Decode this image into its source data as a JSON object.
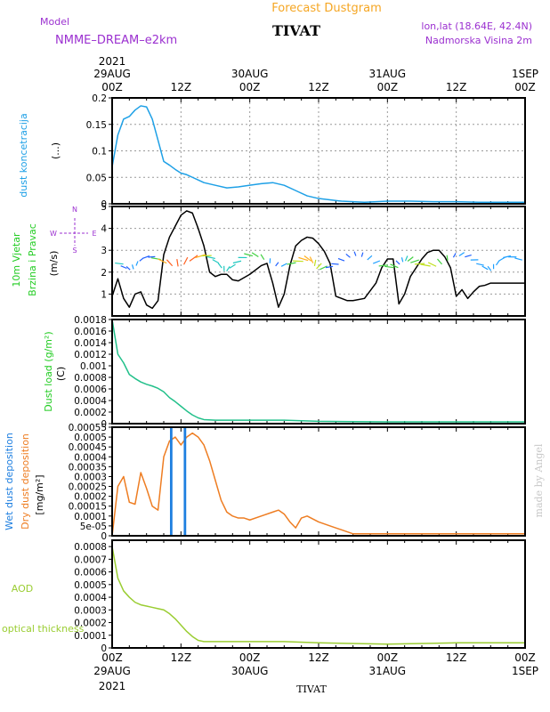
{
  "header": {
    "forecast_title": "Forecast Dustgram",
    "station": "TIVAT",
    "model_label": "Model",
    "model_name": "NMME–DREAM–e2km",
    "lonlat": "lon,lat (18.64E, 42.4N)",
    "elevation": "Nadmorska Visina 2m",
    "footer_station": "TIVAT",
    "watermark": "made by Angel",
    "colors": {
      "title": "#f5a623",
      "purple": "#9b30d0"
    }
  },
  "time_axis": {
    "top_year": "2021",
    "bottom_year": "2021",
    "ticks": [
      {
        "h": 0,
        "top": [
          "29AUG",
          "00Z"
        ],
        "bottom": [
          "00Z",
          "29AUG"
        ]
      },
      {
        "h": 12,
        "top": [
          "12Z"
        ],
        "bottom": [
          "12Z"
        ]
      },
      {
        "h": 24,
        "top": [
          "30AUG",
          "00Z"
        ],
        "bottom": [
          "00Z",
          "30AUG"
        ]
      },
      {
        "h": 36,
        "top": [
          "12Z"
        ],
        "bottom": [
          "12Z"
        ]
      },
      {
        "h": 48,
        "top": [
          "31AUG",
          "00Z"
        ],
        "bottom": [
          "00Z",
          "31AUG"
        ]
      },
      {
        "h": 60,
        "top": [
          "12Z"
        ],
        "bottom": [
          "12Z"
        ]
      },
      {
        "h": 72,
        "top": [
          "1SEP",
          "00Z"
        ],
        "bottom": [
          "00Z",
          "1SEP"
        ]
      }
    ]
  },
  "chart_data": [
    {
      "type": "line",
      "id": "dust_concentration",
      "ylabel": "dust koncetracija",
      "unit": "(...)",
      "label_color": "#1ea0e6",
      "ylim": [
        0,
        0.2
      ],
      "yticks": [
        "0",
        "0.05",
        "0.1",
        "0.15",
        "0.2"
      ],
      "grid": true,
      "series": [
        {
          "color": "#1ea0e6",
          "x": [
            0,
            1,
            2,
            3,
            4,
            5,
            6,
            7,
            8,
            9,
            10,
            11,
            12,
            13,
            14,
            15,
            16,
            18,
            20,
            22,
            24,
            26,
            28,
            30,
            32,
            34,
            36,
            40,
            44,
            48,
            52,
            56,
            60,
            64,
            68,
            72
          ],
          "y": [
            0.07,
            0.13,
            0.16,
            0.165,
            0.177,
            0.185,
            0.183,
            0.16,
            0.12,
            0.08,
            0.073,
            0.065,
            0.058,
            0.055,
            0.05,
            0.045,
            0.04,
            0.035,
            0.03,
            0.032,
            0.035,
            0.038,
            0.04,
            0.035,
            0.025,
            0.015,
            0.01,
            0.005,
            0.003,
            0.005,
            0.005,
            0.004,
            0.004,
            0.003,
            0.003,
            0.003
          ]
        }
      ]
    },
    {
      "type": "line",
      "id": "wind",
      "ylabel": "10m Vjetar",
      "ylabel2": "Brzina i Pravac",
      "unit": "(m/s)",
      "label_color": "#22cc22",
      "compass": {
        "n": "N",
        "s": "S",
        "e": "E",
        "w": "W"
      },
      "ylim": [
        0,
        5
      ],
      "yticks": [
        "1",
        "2",
        "3",
        "4",
        "5"
      ],
      "grid": true,
      "series": [
        {
          "color": "#000000",
          "x": [
            0,
            1,
            2,
            3,
            4,
            5,
            6,
            7,
            8,
            9,
            10,
            11,
            12,
            13,
            14,
            15,
            16,
            17,
            18,
            19,
            20,
            21,
            22,
            24,
            26,
            27,
            28,
            29,
            30,
            31,
            32,
            33,
            34,
            35,
            36,
            37,
            38,
            39,
            40,
            41,
            42,
            44,
            46,
            47,
            48,
            49,
            50,
            51,
            52,
            53,
            54,
            55,
            56,
            57,
            58,
            59,
            60,
            61,
            62,
            63,
            64,
            65,
            66,
            67,
            68,
            69,
            70,
            71,
            72
          ],
          "y": [
            0.9,
            1.7,
            0.8,
            0.4,
            1.0,
            1.1,
            0.5,
            0.35,
            0.7,
            2.8,
            3.6,
            4.1,
            4.6,
            4.8,
            4.7,
            4.0,
            3.2,
            2.0,
            1.8,
            1.9,
            1.9,
            1.65,
            1.6,
            1.9,
            2.3,
            2.4,
            1.5,
            0.4,
            1.0,
            2.3,
            3.2,
            3.45,
            3.6,
            3.55,
            3.3,
            2.95,
            2.4,
            0.9,
            0.8,
            0.7,
            0.7,
            0.8,
            1.5,
            2.2,
            2.6,
            2.6,
            0.55,
            1.0,
            1.8,
            2.2,
            2.6,
            2.9,
            3.0,
            3.0,
            2.7,
            2.2,
            0.9,
            1.2,
            0.8,
            1.1,
            1.35,
            1.4,
            1.5,
            1.5,
            1.5,
            1.5,
            1.5,
            1.5,
            1.5
          ]
        }
      ]
    },
    {
      "type": "line",
      "id": "dust_load",
      "ylabel": "Dust load (g/m²)",
      "unit": "(C)",
      "label_color": "#22cc22",
      "ylim": [
        0,
        0.0018
      ],
      "yticks": [
        "0",
        "0.0002",
        "0.0004",
        "0.0006",
        "0.0008",
        "0.001",
        "0.0012",
        "0.0014",
        "0.0016",
        "0.0018"
      ],
      "grid": false,
      "series": [
        {
          "color": "#22c08a",
          "x": [
            0,
            1,
            2,
            3,
            4,
            5,
            6,
            7,
            8,
            9,
            10,
            11,
            12,
            13,
            14,
            15,
            16,
            18,
            20,
            24,
            30,
            36,
            48,
            60,
            72
          ],
          "y": [
            0.0018,
            0.0012,
            0.00105,
            0.00085,
            0.00078,
            0.00072,
            0.00068,
            0.00065,
            0.00061,
            0.00055,
            0.00045,
            0.00038,
            0.0003,
            0.00022,
            0.00015,
            0.0001,
            7e-05,
            6e-05,
            6e-05,
            6e-05,
            6e-05,
            4e-05,
            3e-05,
            3e-05,
            3e-05
          ]
        }
      ]
    },
    {
      "type": "line",
      "id": "deposition",
      "ylabel": "[mg/m²]",
      "legend": [
        {
          "name": "Wet dust deposition",
          "color": "#1e7fe0"
        },
        {
          "name": "Dry dust deposition",
          "color": "#ee7d22"
        }
      ],
      "ylim": [
        0,
        0.00055
      ],
      "yticks": [
        "0",
        "5e-05",
        "0.0001",
        "0.00015",
        "0.0002",
        "0.00025",
        "0.0003",
        "0.00035",
        "0.0004",
        "0.00045",
        "0.0005",
        "0.00055"
      ],
      "grid": false,
      "series": [
        {
          "name": "Dry dust deposition",
          "color": "#ee7d22",
          "x": [
            0,
            1,
            2,
            3,
            4,
            5,
            6,
            7,
            8,
            9,
            10,
            11,
            12,
            13,
            14,
            15,
            16,
            17,
            18,
            19,
            20,
            21,
            22,
            23,
            24,
            26,
            28,
            29,
            30,
            31,
            32,
            33,
            34,
            36,
            38,
            40,
            42,
            44,
            48,
            52,
            56,
            60,
            64,
            68,
            72
          ],
          "y": [
            0,
            0.00025,
            0.0003,
            0.00017,
            0.00016,
            0.00032,
            0.00024,
            0.00015,
            0.00013,
            0.0004,
            0.00048,
            0.0005,
            0.00046,
            0.0005,
            0.00052,
            0.0005,
            0.00046,
            0.00038,
            0.00028,
            0.00018,
            0.00012,
            0.0001,
            9e-05,
            9e-05,
            8e-05,
            0.0001,
            0.00012,
            0.00013,
            0.00011,
            7e-05,
            4e-05,
            9e-05,
            0.0001,
            7e-05,
            5e-05,
            3e-05,
            1e-05,
            1e-05,
            1e-05,
            1e-05,
            1e-05,
            1e-05,
            1e-05,
            1e-05,
            1e-05
          ]
        },
        {
          "name": "Wet dust deposition",
          "color": "#1e7fe0",
          "x": [
            0,
            10.2,
            10.2,
            10.4,
            10.4,
            12.6,
            12.6,
            12.8,
            12.8,
            72
          ],
          "y": [
            0,
            0,
            0.00055,
            0.00055,
            0,
            0,
            0.00055,
            0.00055,
            0,
            0
          ]
        }
      ]
    },
    {
      "type": "line",
      "id": "aod",
      "ylabel": "AOD",
      "ylabel2": "optical thickness",
      "label_color": "#9acd32",
      "ylim": [
        0,
        0.00085
      ],
      "yticks": [
        "0",
        "0.0001",
        "0.0002",
        "0.0003",
        "0.0004",
        "0.0005",
        "0.0006",
        "0.0007",
        "0.0008"
      ],
      "grid": false,
      "series": [
        {
          "color": "#9acd32",
          "x": [
            0,
            1,
            2,
            3,
            4,
            5,
            6,
            7,
            8,
            9,
            10,
            11,
            12,
            13,
            14,
            15,
            16,
            18,
            20,
            24,
            30,
            36,
            48,
            60,
            72
          ],
          "y": [
            0.0008,
            0.00055,
            0.00045,
            0.0004,
            0.00036,
            0.00034,
            0.00033,
            0.00032,
            0.00031,
            0.0003,
            0.00027,
            0.00023,
            0.00018,
            0.00013,
            9e-05,
            6e-05,
            5e-05,
            5e-05,
            5e-05,
            5e-05,
            5e-05,
            4e-05,
            3e-05,
            4e-05,
            4e-05
          ]
        }
      ]
    }
  ]
}
